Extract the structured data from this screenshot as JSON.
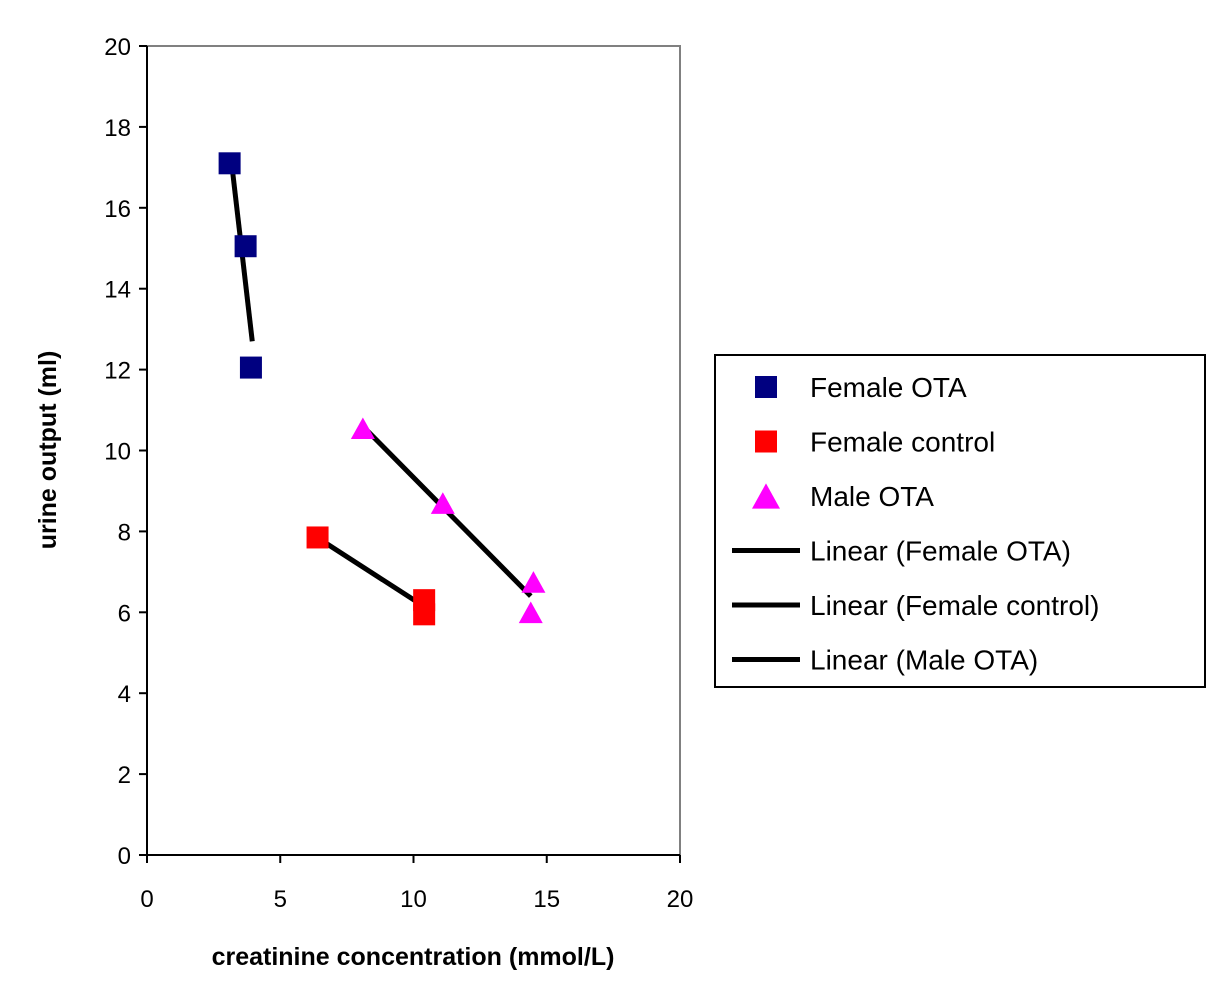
{
  "chart_data": {
    "type": "scatter",
    "title": "",
    "xlabel": "creatinine concentration (mmol/L)",
    "ylabel": "urine output (ml)",
    "xlim": [
      0,
      20
    ],
    "ylim": [
      0,
      20
    ],
    "xticks": [
      0,
      5,
      10,
      15,
      20
    ],
    "yticks": [
      0,
      2,
      4,
      6,
      8,
      10,
      12,
      14,
      16,
      18,
      20
    ],
    "grid": false,
    "legend_position": "right",
    "series": [
      {
        "name": "Female OTA",
        "marker": "square",
        "color": "#000080",
        "points": [
          [
            3.1,
            17.1
          ],
          [
            3.7,
            15.05
          ],
          [
            3.9,
            12.05
          ]
        ]
      },
      {
        "name": "Female control",
        "marker": "square",
        "color": "#ff0000",
        "points": [
          [
            6.4,
            7.85
          ],
          [
            10.4,
            6.3
          ],
          [
            10.4,
            5.95
          ]
        ]
      },
      {
        "name": "Male OTA",
        "marker": "triangle",
        "color": "#ff00ff",
        "points": [
          [
            8.1,
            10.55
          ],
          [
            11.1,
            8.7
          ],
          [
            14.5,
            6.75
          ],
          [
            14.4,
            6.0
          ]
        ]
      }
    ],
    "trendlines": [
      {
        "name": "Linear (Female OTA)",
        "color": "#000000",
        "x1": 3.15,
        "y1": 17.25,
        "x2": 3.95,
        "y2": 12.7
      },
      {
        "name": "Linear (Female control)",
        "color": "#000000",
        "x1": 6.5,
        "y1": 7.8,
        "x2": 10.5,
        "y2": 6.1
      },
      {
        "name": "Linear (Male OTA)",
        "color": "#000000",
        "x1": 8.1,
        "y1": 10.6,
        "x2": 14.4,
        "y2": 6.4
      }
    ],
    "legend": [
      {
        "label": "Female OTA",
        "kind": "square",
        "color": "#000080"
      },
      {
        "label": "Female control",
        "kind": "square",
        "color": "#ff0000"
      },
      {
        "label": "Male OTA",
        "kind": "triangle",
        "color": "#ff00ff"
      },
      {
        "label": "Linear (Female OTA)",
        "kind": "line",
        "color": "#000000"
      },
      {
        "label": "Linear (Female control)",
        "kind": "line",
        "color": "#000000"
      },
      {
        "label": "Linear (Male OTA)",
        "kind": "line",
        "color": "#000000"
      }
    ]
  }
}
